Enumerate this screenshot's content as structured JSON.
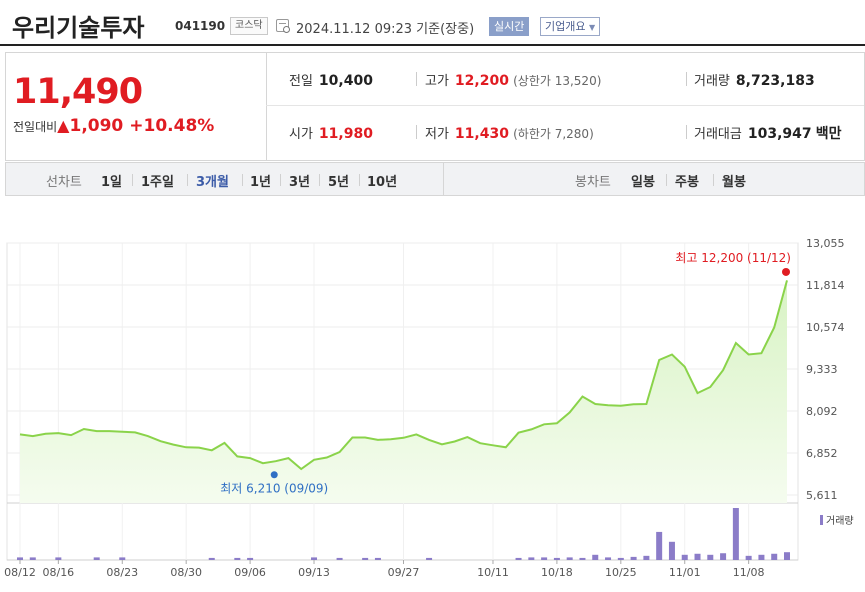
{
  "header": {
    "name": "우리기술투자",
    "code": "041190",
    "market": "코스닥",
    "datetime": "2024.11.12 09:23",
    "basis": "기준(장중)",
    "realtime_label": "실시간",
    "company_label": "기업개요",
    "company_arrow": "▼"
  },
  "quote": {
    "price": "11,490",
    "change_label": "전일대비",
    "change_arrow": "▲",
    "change_value": "1,090",
    "change_pct": "+10.48%",
    "prev_label": "전일",
    "prev": "10,400",
    "open_label": "시가",
    "open": "11,980",
    "high_label": "고가",
    "high": "12,200",
    "upper_limit": "(상한가 13,520)",
    "low_label": "저가",
    "low": "11,430",
    "lower_limit": "(하한가 7,280)",
    "volume_label": "거래량",
    "volume": "8,723,183",
    "amount_label": "거래대금",
    "amount": "103,947",
    "amount_unit": "백만"
  },
  "tabs": {
    "line_label": "선차트",
    "periods": [
      "1일",
      "1주일",
      "3개월",
      "1년",
      "3년",
      "5년",
      "10년"
    ],
    "active_period": "3개월",
    "candle_label": "봉차트",
    "candles": [
      "일봉",
      "주봉",
      "월봉"
    ]
  },
  "chart_data": {
    "type": "area",
    "y_ticks": [
      "13,055",
      "11,814",
      "10,574",
      "9,333",
      "8,092",
      "6,852",
      "5,611"
    ],
    "ylim": [
      5611,
      13055
    ],
    "x_ticks": [
      "08/12",
      "08/16",
      "08/23",
      "08/30",
      "09/06",
      "09/13",
      "09/27",
      "10/11",
      "10/18",
      "10/25",
      "11/01",
      "11/08"
    ],
    "max_label": "최고 12,200 (11/12)",
    "min_label": "최저 6,210 (09/09)",
    "max_value": 12200,
    "min_value": 6210,
    "values": [
      7400,
      7350,
      7420,
      7440,
      7380,
      7560,
      7500,
      7500,
      7480,
      7460,
      7350,
      7200,
      7100,
      7020,
      7010,
      6930,
      7150,
      6750,
      6700,
      6550,
      6610,
      6700,
      6380,
      6650,
      6720,
      6880,
      7310,
      7310,
      7240,
      7260,
      7300,
      7400,
      7240,
      7110,
      7190,
      7320,
      7140,
      7080,
      7020,
      7450,
      7550,
      7700,
      7730,
      8050,
      8520,
      8300,
      8260,
      8250,
      8290,
      8300,
      9600,
      9760,
      9400,
      8620,
      8800,
      9300,
      10100,
      9760,
      9800,
      10560,
      11950
    ],
    "volume_label": "거래량",
    "volume": [
      0.05,
      0.05,
      0,
      0.05,
      0,
      0,
      0.05,
      0,
      0.05,
      0,
      0,
      0,
      0,
      0,
      0,
      0.04,
      0,
      0.04,
      0.04,
      0,
      0,
      0,
      0,
      0.05,
      0,
      0.04,
      0,
      0.04,
      0.04,
      0,
      0,
      0,
      0.04,
      0,
      0,
      0,
      0,
      0,
      0,
      0.04,
      0.05,
      0.05,
      0.04,
      0.05,
      0.04,
      0.1,
      0.05,
      0.04,
      0.06,
      0.08,
      0.54,
      0.35,
      0.1,
      0.12,
      0.1,
      0.13,
      1.0,
      0.08,
      0.1,
      0.12,
      0.15
    ],
    "grid": true,
    "colors": {
      "line": "#8ad34a",
      "fill_top": "#d8f3c4",
      "fill_bottom": "#f5fcef",
      "max": "#e01c22",
      "min": "#2f6fc4",
      "volume": "#8b7cc8"
    }
  }
}
